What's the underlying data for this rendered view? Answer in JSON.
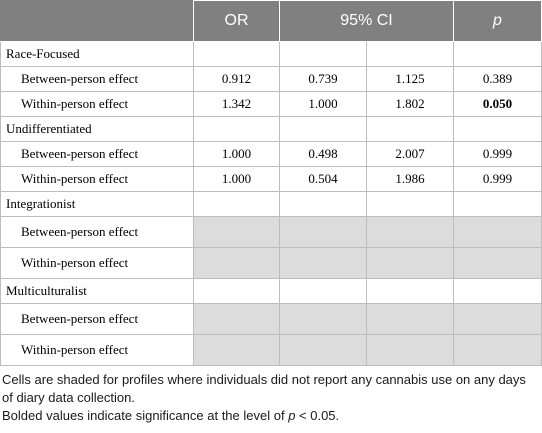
{
  "header": {
    "col_or": "OR",
    "col_ci": "95% CI",
    "col_p": "p"
  },
  "groups": [
    {
      "name": "Race-Focused",
      "rows": [
        {
          "label": "Between-person effect",
          "or": "0.912",
          "ci_low": "0.739",
          "ci_high": "1.125",
          "p": "0.389"
        },
        {
          "label": "Within-person effect",
          "or": "1.342",
          "ci_low": "1.000",
          "ci_high": "1.802",
          "p": "0.050"
        }
      ]
    },
    {
      "name": "Undifferentiated",
      "rows": [
        {
          "label": "Between-person effect",
          "or": "1.000",
          "ci_low": "0.498",
          "ci_high": "2.007",
          "p": "0.999"
        },
        {
          "label": "Within-person effect",
          "or": "1.000",
          "ci_low": "0.504",
          "ci_high": "1.986",
          "p": "0.999"
        }
      ]
    },
    {
      "name": "Integrationist",
      "rows": [
        {
          "label": "Between-person effect"
        },
        {
          "label": "Within-person effect"
        }
      ]
    },
    {
      "name": "Multiculturalist",
      "rows": [
        {
          "label": "Between-person effect"
        },
        {
          "label": "Within-person effect"
        }
      ]
    }
  ],
  "notes": {
    "line1": "Cells are shaded for profiles where individuals did not report any cannabis use on any days of diary data collection.",
    "line2_prefix": "Bolded values indicate significance at the level of ",
    "line2_var": "p",
    "line2_suffix": " < 0.05."
  },
  "colors": {
    "header_bg": "#808080",
    "shade": "#dcdcdc",
    "border": "#bdbdbd"
  }
}
